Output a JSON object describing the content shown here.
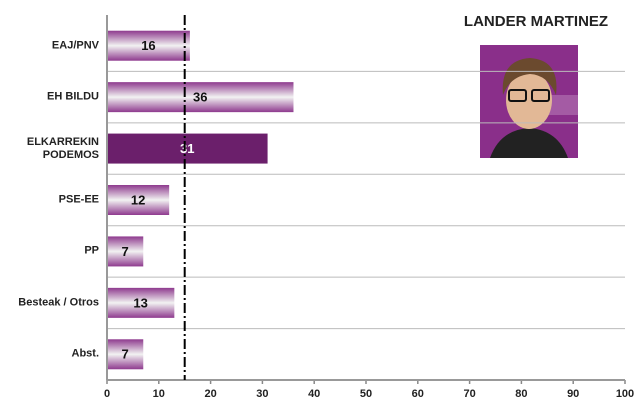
{
  "chart_data": {
    "type": "barh",
    "title": "LANDER MARTINEZ",
    "categories": [
      "EAJ/PNV",
      "EH BILDU",
      "ELKARREKIN PODEMOS",
      "PSE-EE",
      "PP",
      "Besteak / Otros",
      "Abst."
    ],
    "values": [
      16,
      36,
      31,
      12,
      7,
      13,
      7
    ],
    "colors": [
      "#8e3a8e",
      "#8e3a8e",
      "#6b1f6b",
      "#8e3a8e",
      "#8e3a8e",
      "#8e3a8e",
      "#8e3a8e"
    ],
    "reference_line": 15,
    "xlim": [
      0,
      100
    ],
    "xticks": [
      0,
      10,
      20,
      30,
      40,
      50,
      60,
      70,
      80,
      90,
      100
    ],
    "grid": true
  }
}
